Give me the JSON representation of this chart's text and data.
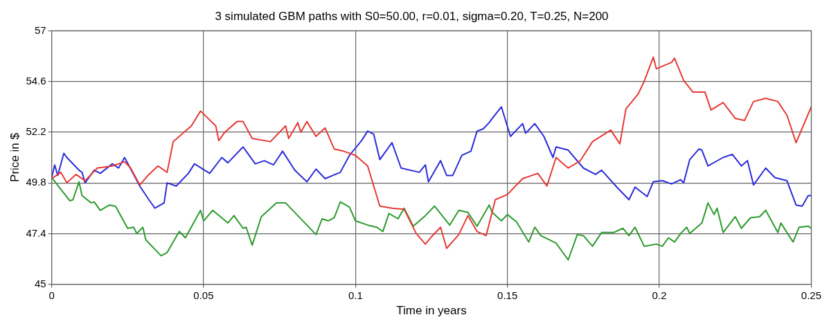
{
  "chart_data": {
    "type": "line",
    "title": "3 simulated GBM paths with S0=50.00, r=0.01, sigma=0.20, T=0.25, N=200",
    "xlabel": "Time in years",
    "ylabel": "Price in $",
    "xlim": [
      0,
      0.25
    ],
    "xticks": [
      0,
      0.05,
      0.1,
      0.15,
      0.2,
      0.25
    ],
    "ylim": [
      45,
      57
    ],
    "yticks": [
      45,
      47.4,
      49.8,
      52.2,
      54.6,
      57
    ],
    "grid": true,
    "legend": false,
    "marker": "none",
    "line_style": "solid",
    "series": [
      {
        "color": "#e53935",
        "x": [
          0,
          0.003,
          0.005,
          0.008,
          0.011,
          0.015,
          0.02,
          0.024,
          0.026,
          0.029,
          0.032,
          0.035,
          0.038,
          0.04,
          0.046,
          0.049,
          0.054,
          0.055,
          0.057,
          0.061,
          0.063,
          0.066,
          0.072,
          0.077,
          0.078,
          0.081,
          0.082,
          0.084,
          0.087,
          0.09,
          0.093,
          0.096,
          0.1,
          0.104,
          0.108,
          0.112,
          0.116,
          0.12,
          0.123,
          0.125,
          0.128,
          0.13,
          0.134,
          0.137,
          0.14,
          0.143,
          0.146,
          0.15,
          0.155,
          0.16,
          0.163,
          0.166,
          0.17,
          0.174,
          0.178,
          0.184,
          0.187,
          0.189,
          0.193,
          0.195,
          0.198,
          0.199,
          0.204,
          0.205,
          0.208,
          0.211,
          0.215,
          0.217,
          0.221,
          0.225,
          0.228,
          0.231,
          0.235,
          0.239,
          0.242,
          0.245,
          0.25
        ],
        "values": [
          50.0,
          50.3,
          49.8,
          50.2,
          49.9,
          50.5,
          50.6,
          50.8,
          50.5,
          49.7,
          50.2,
          50.6,
          50.3,
          51.75,
          52.5,
          53.2,
          52.5,
          51.8,
          52.2,
          52.7,
          52.7,
          51.9,
          51.75,
          52.5,
          51.9,
          52.65,
          52.2,
          52.7,
          52.0,
          52.4,
          51.4,
          51.3,
          51.1,
          50.6,
          48.7,
          48.6,
          48.55,
          47.4,
          46.9,
          47.25,
          47.7,
          46.7,
          47.35,
          48.25,
          47.5,
          47.3,
          49.0,
          49.25,
          50.0,
          50.25,
          49.65,
          51.0,
          50.5,
          50.85,
          51.75,
          52.3,
          51.65,
          53.3,
          54.0,
          54.6,
          55.75,
          55.2,
          55.5,
          55.7,
          54.65,
          54.1,
          54.1,
          53.25,
          53.6,
          52.85,
          52.75,
          53.65,
          53.8,
          53.65,
          53.0,
          51.7,
          53.4
        ]
      },
      {
        "color": "#2b2bd9",
        "x": [
          0,
          0.001,
          0.002,
          0.004,
          0.005,
          0.009,
          0.01,
          0.011,
          0.014,
          0.016,
          0.02,
          0.022,
          0.024,
          0.029,
          0.032,
          0.034,
          0.037,
          0.038,
          0.041,
          0.045,
          0.047,
          0.052,
          0.056,
          0.058,
          0.063,
          0.064,
          0.067,
          0.07,
          0.073,
          0.076,
          0.08,
          0.084,
          0.087,
          0.09,
          0.095,
          0.098,
          0.102,
          0.104,
          0.106,
          0.108,
          0.112,
          0.115,
          0.121,
          0.123,
          0.124,
          0.128,
          0.13,
          0.132,
          0.135,
          0.138,
          0.14,
          0.142,
          0.144,
          0.145,
          0.148,
          0.151,
          0.155,
          0.156,
          0.159,
          0.162,
          0.165,
          0.166,
          0.17,
          0.175,
          0.179,
          0.181,
          0.186,
          0.19,
          0.192,
          0.196,
          0.198,
          0.201,
          0.204,
          0.207,
          0.208,
          0.21,
          0.213,
          0.214,
          0.216,
          0.221,
          0.224,
          0.227,
          0.229,
          0.231,
          0.235,
          0.238,
          0.242,
          0.245,
          0.247,
          0.249,
          0.25
        ],
        "values": [
          50.05,
          50.65,
          50.15,
          51.2,
          51.0,
          50.4,
          50.3,
          49.8,
          50.4,
          50.25,
          50.7,
          50.5,
          51.0,
          49.65,
          49.0,
          48.6,
          48.85,
          49.8,
          49.65,
          50.25,
          50.7,
          50.25,
          51.0,
          50.75,
          51.5,
          51.3,
          50.7,
          50.85,
          50.65,
          51.3,
          50.4,
          49.85,
          50.45,
          50.0,
          50.3,
          51.1,
          51.8,
          52.25,
          52.1,
          50.9,
          51.7,
          50.5,
          50.3,
          50.65,
          49.85,
          50.85,
          50.15,
          50.15,
          51.1,
          51.3,
          52.25,
          52.35,
          52.65,
          52.85,
          53.4,
          52.0,
          52.6,
          52.15,
          52.6,
          52.0,
          51.0,
          51.5,
          51.35,
          50.5,
          50.2,
          50.4,
          49.6,
          49.0,
          49.6,
          49.15,
          49.85,
          49.9,
          49.75,
          49.95,
          49.8,
          50.9,
          51.4,
          51.35,
          50.6,
          51.0,
          51.15,
          50.6,
          50.85,
          49.7,
          50.5,
          50.05,
          49.9,
          48.75,
          48.7,
          49.2,
          49.2
        ]
      },
      {
        "color": "#2e9a2e",
        "x": [
          0,
          0.003,
          0.006,
          0.007,
          0.009,
          0.01,
          0.013,
          0.014,
          0.016,
          0.019,
          0.021,
          0.025,
          0.027,
          0.028,
          0.03,
          0.031,
          0.036,
          0.038,
          0.042,
          0.044,
          0.049,
          0.05,
          0.053,
          0.058,
          0.06,
          0.063,
          0.064,
          0.066,
          0.069,
          0.074,
          0.077,
          0.081,
          0.087,
          0.089,
          0.091,
          0.093,
          0.095,
          0.098,
          0.1,
          0.104,
          0.107,
          0.109,
          0.111,
          0.114,
          0.116,
          0.119,
          0.123,
          0.126,
          0.131,
          0.134,
          0.137,
          0.14,
          0.144,
          0.145,
          0.148,
          0.15,
          0.153,
          0.157,
          0.159,
          0.161,
          0.166,
          0.17,
          0.173,
          0.175,
          0.178,
          0.181,
          0.185,
          0.188,
          0.19,
          0.192,
          0.195,
          0.199,
          0.201,
          0.203,
          0.205,
          0.207,
          0.209,
          0.21,
          0.214,
          0.216,
          0.218,
          0.219,
          0.221,
          0.225,
          0.227,
          0.23,
          0.233,
          0.235,
          0.239,
          0.24,
          0.244,
          0.246,
          0.249,
          0.25
        ],
        "values": [
          50.05,
          49.5,
          48.95,
          49.0,
          49.85,
          49.2,
          48.85,
          48.9,
          48.5,
          48.75,
          48.7,
          47.65,
          47.7,
          47.4,
          47.7,
          47.1,
          46.35,
          46.5,
          47.5,
          47.2,
          48.5,
          48.0,
          48.5,
          47.9,
          48.25,
          47.65,
          47.7,
          46.85,
          48.2,
          48.85,
          48.85,
          48.25,
          47.35,
          48.1,
          48.0,
          48.15,
          48.9,
          48.65,
          48.0,
          47.8,
          47.7,
          47.5,
          48.35,
          48.1,
          48.6,
          47.75,
          48.25,
          48.7,
          47.8,
          48.5,
          48.4,
          47.75,
          48.75,
          48.4,
          48.0,
          48.3,
          47.95,
          47.0,
          47.7,
          47.3,
          46.95,
          46.15,
          47.35,
          47.3,
          46.8,
          47.45,
          47.45,
          47.65,
          47.3,
          47.7,
          46.8,
          46.9,
          46.8,
          47.2,
          47.0,
          47.4,
          47.7,
          47.4,
          47.9,
          48.85,
          48.3,
          48.6,
          47.45,
          48.2,
          47.65,
          48.15,
          48.2,
          48.5,
          47.45,
          47.9,
          47.0,
          47.7,
          47.75,
          47.65
        ]
      }
    ]
  }
}
